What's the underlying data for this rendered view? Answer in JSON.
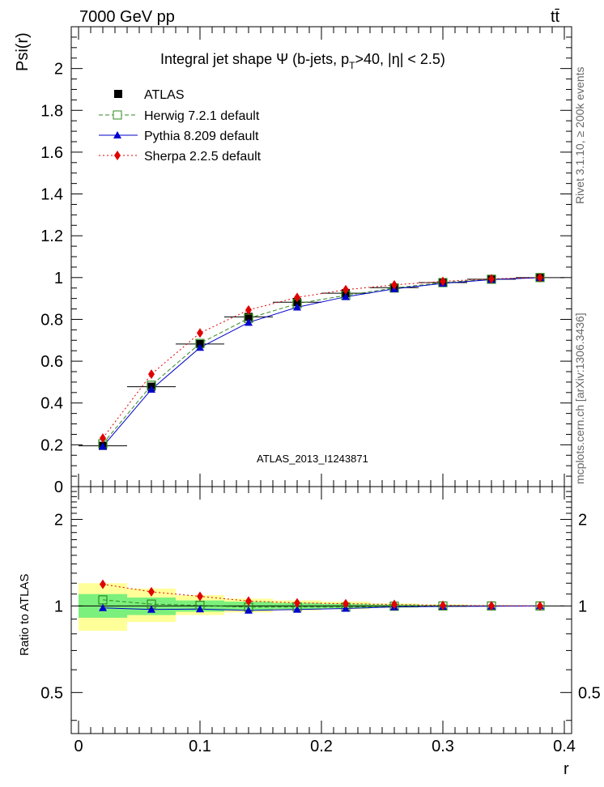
{
  "header": {
    "energy_label": "7000 GeV pp",
    "process_label": "tt̄"
  },
  "side": {
    "rivet_label": "Rivet 3.1.10, ≥ 200k events",
    "mcplots_label": "mcplots.cern.ch [arXiv:1306.3436]"
  },
  "chart_data": [
    {
      "type": "line",
      "title": "Integral jet shape  Ψ (b-jets, p",
      "title_sub": "T",
      "title_rest": ">40, |η| < 2.5)",
      "ylabel": "Psi(r)",
      "watermark": "ATLAS_2013_I1243871",
      "x": [
        0.02,
        0.06,
        0.1,
        0.14,
        0.18,
        0.22,
        0.26,
        0.3,
        0.34,
        0.38
      ],
      "xlim": [
        -0.006,
        0.406
      ],
      "ylim": [
        0,
        2.2
      ],
      "yticks": [
        {
          "v": 0,
          "label": "0"
        },
        {
          "v": 0.2,
          "label": "0.2"
        },
        {
          "v": 0.4,
          "label": "0.4"
        },
        {
          "v": 0.6,
          "label": "0.6"
        },
        {
          "v": 0.8,
          "label": "0.8"
        },
        {
          "v": 1.0,
          "label": "1"
        },
        {
          "v": 1.2,
          "label": "1.2"
        },
        {
          "v": 1.4,
          "label": "1.4"
        },
        {
          "v": 1.6,
          "label": "1.6"
        },
        {
          "v": 1.8,
          "label": "1.8"
        },
        {
          "v": 2.0,
          "label": "2"
        }
      ],
      "series": [
        {
          "name": "ATLAS",
          "color": "#000000",
          "marker": "square-filled",
          "values": [
            0.195,
            0.478,
            0.682,
            0.812,
            0.882,
            0.925,
            0.952,
            0.976,
            0.992,
            1.0
          ]
        },
        {
          "name": "Herwig 7.2.1 default",
          "color": "#2e8b1f",
          "marker": "square-open",
          "dash": "5,3",
          "values": [
            0.205,
            0.485,
            0.685,
            0.805,
            0.875,
            0.915,
            0.95,
            0.976,
            0.992,
            1.0
          ]
        },
        {
          "name": "Pythia 8.209 default",
          "color": "#0000cc",
          "marker": "triangle",
          "dash": "",
          "values": [
            0.192,
            0.465,
            0.665,
            0.785,
            0.858,
            0.908,
            0.946,
            0.972,
            0.99,
            1.0
          ]
        },
        {
          "name": "Sherpa 2.2.5 default",
          "color": "#e00000",
          "marker": "diamond",
          "dash": "2,3",
          "values": [
            0.232,
            0.538,
            0.735,
            0.845,
            0.905,
            0.942,
            0.965,
            0.982,
            0.994,
            1.0
          ]
        }
      ]
    },
    {
      "type": "line",
      "ylabel": "Ratio to ATLAS",
      "xlabel": "r",
      "x": [
        0.02,
        0.06,
        0.1,
        0.14,
        0.18,
        0.22,
        0.26,
        0.3,
        0.34,
        0.38
      ],
      "xlim": [
        -0.006,
        0.406
      ],
      "ylim": [
        0.36,
        2.6
      ],
      "xticks": [
        {
          "v": 0,
          "label": "0"
        },
        {
          "v": 0.1,
          "label": "0.1"
        },
        {
          "v": 0.2,
          "label": "0.2"
        },
        {
          "v": 0.3,
          "label": "0.3"
        },
        {
          "v": 0.4,
          "label": "0.4"
        }
      ],
      "yticks": [
        {
          "v": 0.5,
          "label": "0.5"
        },
        {
          "v": 1.0,
          "label": "1"
        },
        {
          "v": 2.0,
          "label": "2"
        }
      ],
      "bands": {
        "bin_edges": [
          0.0,
          0.04,
          0.08,
          0.12,
          0.16,
          0.2,
          0.24,
          0.28,
          0.32,
          0.36,
          0.4
        ],
        "stat": {
          "color": "#7cf07c",
          "lo": [
            0.91,
            0.93,
            0.955,
            0.965,
            0.975,
            0.982,
            0.988,
            0.993,
            0.997,
            1.0
          ],
          "hi": [
            1.1,
            1.07,
            1.045,
            1.035,
            1.025,
            1.018,
            1.012,
            1.007,
            1.003,
            1.0
          ]
        },
        "total": {
          "color": "#ffff99",
          "lo": [
            0.82,
            0.88,
            0.93,
            0.95,
            0.965,
            0.975,
            0.985,
            0.99,
            0.995,
            1.0
          ],
          "hi": [
            1.2,
            1.15,
            1.09,
            1.06,
            1.045,
            1.035,
            1.02,
            1.012,
            1.005,
            1.0
          ]
        }
      },
      "series": [
        {
          "name": "ATLAS",
          "color": "#000000",
          "values": [
            1,
            1,
            1,
            1,
            1,
            1,
            1,
            1,
            1,
            1
          ]
        },
        {
          "name": "Herwig 7.2.1 default",
          "color": "#2e8b1f",
          "marker": "square-open",
          "dash": "5,3",
          "values": [
            1.05,
            1.015,
            1.005,
            0.99,
            0.992,
            0.99,
            0.998,
            1.0,
            1.0,
            1.0
          ]
        },
        {
          "name": "Pythia 8.209 default",
          "color": "#0000cc",
          "marker": "triangle",
          "dash": "",
          "values": [
            0.985,
            0.972,
            0.975,
            0.965,
            0.972,
            0.98,
            0.992,
            0.996,
            0.998,
            1.0
          ]
        },
        {
          "name": "Sherpa 2.2.5 default",
          "color": "#e00000",
          "marker": "diamond",
          "dash": "2,3",
          "values": [
            1.19,
            1.12,
            1.08,
            1.04,
            1.025,
            1.018,
            1.012,
            1.005,
            1.002,
            1.0
          ]
        }
      ]
    }
  ]
}
